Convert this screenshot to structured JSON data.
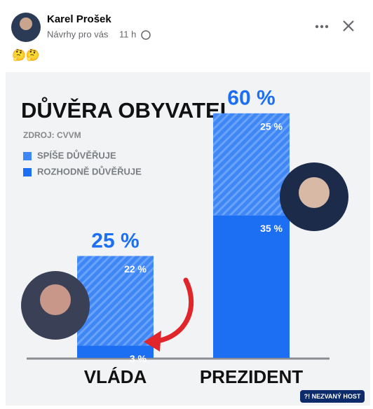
{
  "post": {
    "author": "Karel Prošek",
    "context": "Návrhy pro vás",
    "time": "11 h",
    "text": "🤔🤔"
  },
  "chart_data": {
    "type": "stacked_bar",
    "title": "DŮVĚRA OBYVATEL",
    "subtitle": "ZDROJ: CVVM",
    "categories": [
      "VLÁDA",
      "PREZIDENT"
    ],
    "series": [
      {
        "name": "SPÍŠE DŮVĚŘUJE",
        "color": "#3f87f6",
        "hatched": true,
        "values": [
          22,
          25
        ],
        "value_labels": [
          "22 %",
          "25 %"
        ]
      },
      {
        "name": "ROZHODNĚ DŮVĚŘUJE",
        "color": "#1c6ff2",
        "hatched": false,
        "values": [
          3,
          35
        ],
        "value_labels": [
          "3 %",
          "35 %"
        ]
      }
    ],
    "totals": [
      25,
      60
    ],
    "total_labels": [
      "25 %",
      "60 %"
    ],
    "badge": "?! NEZVANÝ HOST"
  }
}
